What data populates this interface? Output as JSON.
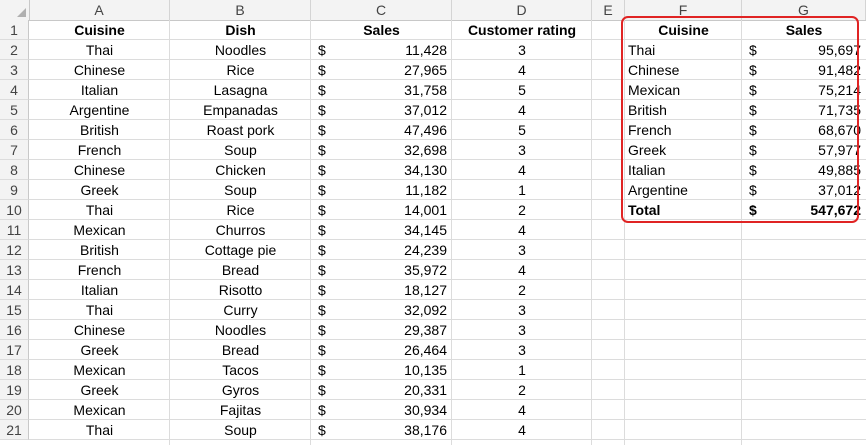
{
  "columns": [
    "A",
    "B",
    "C",
    "D",
    "E",
    "F",
    "G"
  ],
  "rows": [
    "1",
    "2",
    "3",
    "4",
    "5",
    "6",
    "7",
    "8",
    "9",
    "10",
    "11",
    "12",
    "13",
    "14",
    "15",
    "16",
    "17",
    "18",
    "19",
    "20",
    "21"
  ],
  "table": {
    "headers": {
      "cuisine": "Cuisine",
      "dish": "Dish",
      "sales": "Sales",
      "rating": "Customer rating"
    },
    "currency": "$",
    "records": [
      {
        "cuisine": "Thai",
        "dish": "Noodles",
        "sales": "11,428",
        "rating": "3"
      },
      {
        "cuisine": "Chinese",
        "dish": "Rice",
        "sales": "27,965",
        "rating": "4"
      },
      {
        "cuisine": "Italian",
        "dish": "Lasagna",
        "sales": "31,758",
        "rating": "5"
      },
      {
        "cuisine": "Argentine",
        "dish": "Empanadas",
        "sales": "37,012",
        "rating": "4"
      },
      {
        "cuisine": "British",
        "dish": "Roast pork",
        "sales": "47,496",
        "rating": "5"
      },
      {
        "cuisine": "French",
        "dish": "Soup",
        "sales": "32,698",
        "rating": "3"
      },
      {
        "cuisine": "Chinese",
        "dish": "Chicken",
        "sales": "34,130",
        "rating": "4"
      },
      {
        "cuisine": "Greek",
        "dish": "Soup",
        "sales": "11,182",
        "rating": "1"
      },
      {
        "cuisine": "Thai",
        "dish": "Rice",
        "sales": "14,001",
        "rating": "2"
      },
      {
        "cuisine": "Mexican",
        "dish": "Churros",
        "sales": "34,145",
        "rating": "4"
      },
      {
        "cuisine": "British",
        "dish": "Cottage pie",
        "sales": "24,239",
        "rating": "3"
      },
      {
        "cuisine": "French",
        "dish": "Bread",
        "sales": "35,972",
        "rating": "4"
      },
      {
        "cuisine": "Italian",
        "dish": "Risotto",
        "sales": "18,127",
        "rating": "2"
      },
      {
        "cuisine": "Thai",
        "dish": "Curry",
        "sales": "32,092",
        "rating": "3"
      },
      {
        "cuisine": "Chinese",
        "dish": "Noodles",
        "sales": "29,387",
        "rating": "3"
      },
      {
        "cuisine": "Greek",
        "dish": "Bread",
        "sales": "26,464",
        "rating": "3"
      },
      {
        "cuisine": "Mexican",
        "dish": "Tacos",
        "sales": "10,135",
        "rating": "1"
      },
      {
        "cuisine": "Greek",
        "dish": "Gyros",
        "sales": "20,331",
        "rating": "2"
      },
      {
        "cuisine": "Mexican",
        "dish": "Fajitas",
        "sales": "30,934",
        "rating": "4"
      },
      {
        "cuisine": "Thai",
        "dish": "Soup",
        "sales": "38,176",
        "rating": "4"
      }
    ]
  },
  "summary": {
    "headers": {
      "cuisine": "Cuisine",
      "sales": "Sales"
    },
    "currency": "$",
    "records": [
      {
        "cuisine": "Thai",
        "sales": "95,697"
      },
      {
        "cuisine": "Chinese",
        "sales": "91,482"
      },
      {
        "cuisine": "Mexican",
        "sales": "75,214"
      },
      {
        "cuisine": "British",
        "sales": "71,735"
      },
      {
        "cuisine": "French",
        "sales": "68,670"
      },
      {
        "cuisine": "Greek",
        "sales": "57,977"
      },
      {
        "cuisine": "Italian",
        "sales": "49,885"
      },
      {
        "cuisine": "Argentine",
        "sales": "37,012"
      }
    ],
    "total": {
      "label": "Total",
      "sales": "547,672"
    }
  },
  "colors": {
    "highlight_border": "#e02424",
    "header_bg": "#f3f3f3",
    "gridline": "#dcdcdc"
  }
}
